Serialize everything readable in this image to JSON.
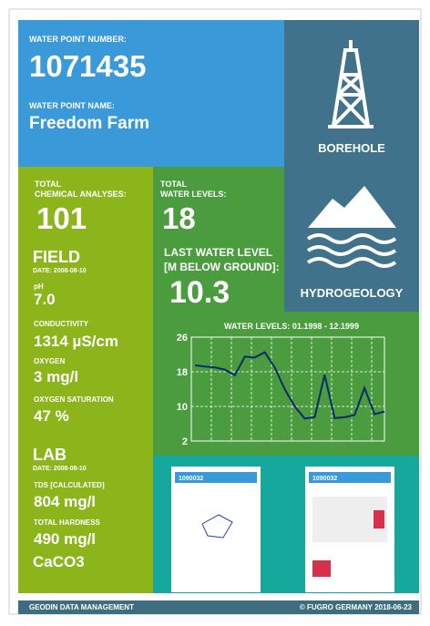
{
  "header": {
    "number_label": "WATER POINT NUMBER:",
    "number": "1071435",
    "name_label": "WATER POINT NAME:",
    "name": "Freedom Farm"
  },
  "tiles": {
    "borehole": "BOREHOLE",
    "hydrogeology": "HYDROGEOLOGY"
  },
  "chemical": {
    "label_lines": [
      "TOTAL",
      "CHEMICAL ANALYSES:"
    ],
    "value": "101"
  },
  "field": {
    "title": "FIELD",
    "date": "DATE: 2008-08-10",
    "items": [
      {
        "label": "pH",
        "value": "7.0"
      },
      {
        "label": "CONDUCTIVITY",
        "value": "1314 µS/cm"
      },
      {
        "label": "OXYGEN",
        "value": "3 mg/l"
      },
      {
        "label": "OXYGEN SATURATION",
        "value": "47 %"
      }
    ]
  },
  "lab": {
    "title": "LAB",
    "date": "DATE: 2008-08-10",
    "items": [
      {
        "label": "TDS [CALCULATED]",
        "value": "804 mg/l"
      },
      {
        "label": "TOTAL HARDNESS",
        "value": "490 mg/l"
      }
    ],
    "unit_note": "CaCO3"
  },
  "water": {
    "label_lines": [
      "TOTAL",
      "WATER LEVELS:"
    ],
    "value": "18",
    "last_label_lines": [
      "LAST WATER LEVEL",
      "[M BELOW GROUND]:"
    ],
    "last_value": "10.3"
  },
  "chart_data": {
    "type": "line",
    "title": "WATER LEVELS: 01.1998 - 12.1999",
    "values": [
      19.5,
      19.2,
      19,
      18.5,
      17.2,
      21.5,
      21.3,
      22.5,
      19,
      14,
      10,
      7.2,
      7.5,
      17.3,
      7.3,
      7.5,
      8,
      14.3,
      8.2,
      8.8
    ],
    "color": "#0d2b6b",
    "ylim": [
      2,
      26
    ],
    "yticks": [
      2,
      10,
      18,
      26
    ],
    "grid": true
  },
  "thumbnails": [
    "1090032",
    "1090032"
  ],
  "footer": {
    "left": "GEODIN DATA MANAGEMENT",
    "right": "© FUGRO GERMANY 2018-06-23"
  }
}
